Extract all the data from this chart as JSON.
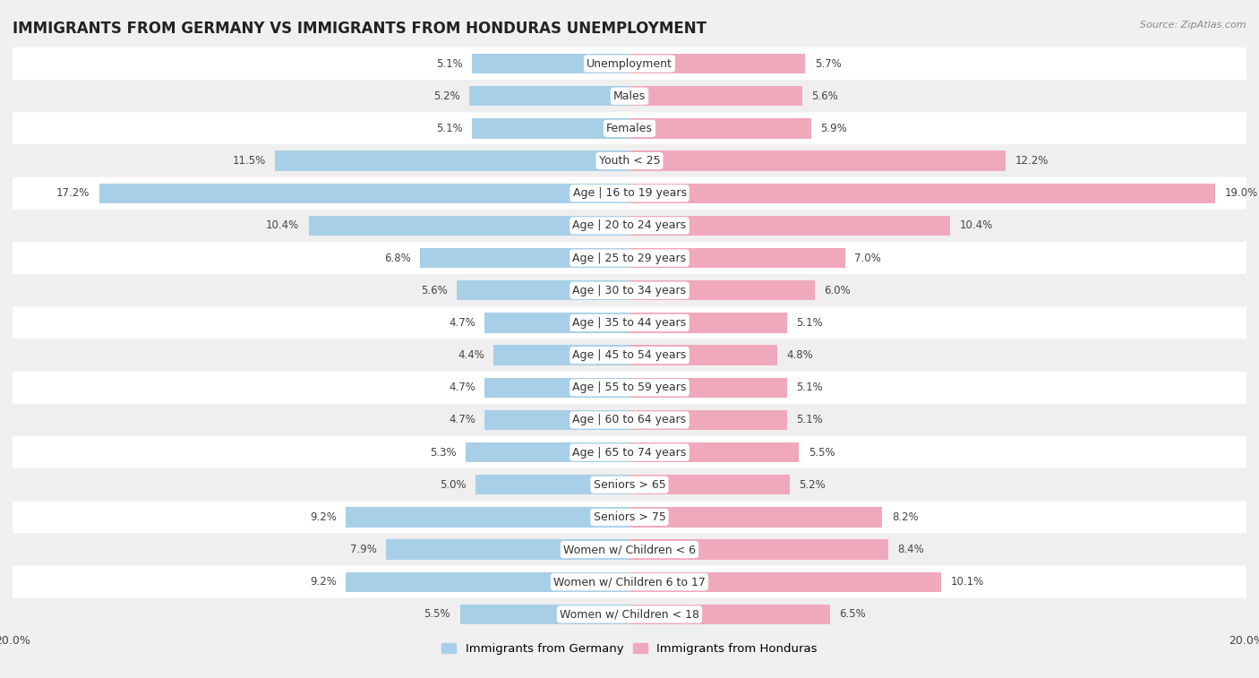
{
  "title": "IMMIGRANTS FROM GERMANY VS IMMIGRANTS FROM HONDURAS UNEMPLOYMENT",
  "source": "Source: ZipAtlas.com",
  "categories": [
    "Unemployment",
    "Males",
    "Females",
    "Youth < 25",
    "Age | 16 to 19 years",
    "Age | 20 to 24 years",
    "Age | 25 to 29 years",
    "Age | 30 to 34 years",
    "Age | 35 to 44 years",
    "Age | 45 to 54 years",
    "Age | 55 to 59 years",
    "Age | 60 to 64 years",
    "Age | 65 to 74 years",
    "Seniors > 65",
    "Seniors > 75",
    "Women w/ Children < 6",
    "Women w/ Children 6 to 17",
    "Women w/ Children < 18"
  ],
  "germany_values": [
    5.1,
    5.2,
    5.1,
    11.5,
    17.2,
    10.4,
    6.8,
    5.6,
    4.7,
    4.4,
    4.7,
    4.7,
    5.3,
    5.0,
    9.2,
    7.9,
    9.2,
    5.5
  ],
  "honduras_values": [
    5.7,
    5.6,
    5.9,
    12.2,
    19.0,
    10.4,
    7.0,
    6.0,
    5.1,
    4.8,
    5.1,
    5.1,
    5.5,
    5.2,
    8.2,
    8.4,
    10.1,
    6.5
  ],
  "germany_color": "#a8cfe8",
  "honduras_color": "#f0a8bc",
  "axis_max": 20.0,
  "row_color_even": "#f5f5f5",
  "row_color_odd": "#e8e8e8",
  "legend_germany": "Immigrants from Germany",
  "legend_honduras": "Immigrants from Honduras",
  "title_fontsize": 12,
  "label_fontsize": 9,
  "value_fontsize": 8.5,
  "bar_height": 0.62
}
